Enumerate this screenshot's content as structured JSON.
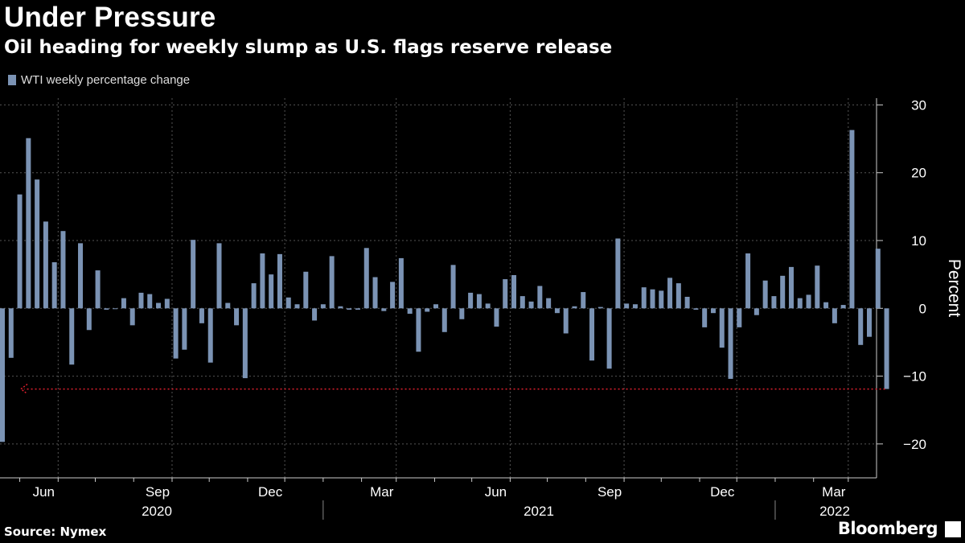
{
  "chart_data": {
    "type": "bar",
    "title": "Under Pressure",
    "subtitle": "Oil heading for weekly slump as U.S. flags reserve release",
    "ylabel": "Percent",
    "ylim": [
      -25,
      31
    ],
    "yticks": [
      30,
      20,
      10,
      0,
      -10,
      -20
    ],
    "grid": true,
    "legend_placement": "top-left",
    "source": "Source: Nymex",
    "brand": "Bloomberg",
    "colors": {
      "bar": "#7b93b4",
      "annotation": "#e0202e",
      "grid": "#555555",
      "background": "#000000"
    },
    "x_months": [
      "Jun",
      "Sep",
      "Dec",
      "Mar",
      "Jun",
      "Sep",
      "Dec",
      "Mar"
    ],
    "x_years": [
      "2020",
      "2021",
      "2022"
    ],
    "series": [
      {
        "name": "WTI weekly percentage change",
        "x": [
          "2020-04-17",
          "2020-04-24",
          "2020-05-01",
          "2020-05-08",
          "2020-05-15",
          "2020-05-22",
          "2020-05-29",
          "2020-06-05",
          "2020-06-12",
          "2020-06-19",
          "2020-06-26",
          "2020-07-03",
          "2020-07-10",
          "2020-07-17",
          "2020-07-24",
          "2020-07-31",
          "2020-08-07",
          "2020-08-14",
          "2020-08-21",
          "2020-08-28",
          "2020-09-04",
          "2020-09-11",
          "2020-09-18",
          "2020-09-25",
          "2020-10-02",
          "2020-10-09",
          "2020-10-16",
          "2020-10-23",
          "2020-10-30",
          "2020-11-06",
          "2020-11-13",
          "2020-11-20",
          "2020-11-27",
          "2020-12-04",
          "2020-12-11",
          "2020-12-18",
          "2020-12-25",
          "2021-01-01",
          "2021-01-08",
          "2021-01-15",
          "2021-01-22",
          "2021-01-29",
          "2021-02-05",
          "2021-02-12",
          "2021-02-19",
          "2021-02-26",
          "2021-03-05",
          "2021-03-12",
          "2021-03-19",
          "2021-03-26",
          "2021-04-02",
          "2021-04-09",
          "2021-04-16",
          "2021-04-23",
          "2021-04-30",
          "2021-05-07",
          "2021-05-14",
          "2021-05-21",
          "2021-05-28",
          "2021-06-04",
          "2021-06-11",
          "2021-06-18",
          "2021-06-25",
          "2021-07-02",
          "2021-07-09",
          "2021-07-16",
          "2021-07-23",
          "2021-07-30",
          "2021-08-06",
          "2021-08-13",
          "2021-08-20",
          "2021-08-27",
          "2021-09-03",
          "2021-09-10",
          "2021-09-17",
          "2021-09-24",
          "2021-10-01",
          "2021-10-08",
          "2021-10-15",
          "2021-10-22",
          "2021-10-29",
          "2021-11-05",
          "2021-11-12",
          "2021-11-19",
          "2021-11-26",
          "2021-12-03",
          "2021-12-10",
          "2021-12-17",
          "2021-12-24",
          "2021-12-31",
          "2022-01-07",
          "2022-01-14",
          "2022-01-21",
          "2022-01-28",
          "2022-02-04",
          "2022-02-11",
          "2022-02-18",
          "2022-02-25",
          "2022-03-04",
          "2022-03-11",
          "2022-03-18",
          "2022-03-25",
          "2022-04-01"
        ],
        "values": [
          -19.7,
          -7.3,
          16.8,
          25.1,
          19.0,
          12.8,
          6.8,
          11.4,
          -8.3,
          9.6,
          -3.2,
          5.6,
          -0.2,
          -0.1,
          1.5,
          -2.5,
          2.3,
          2.1,
          0.8,
          1.4,
          -7.4,
          -6.1,
          10.1,
          -2.2,
          -8.0,
          9.6,
          0.8,
          -2.5,
          -10.3,
          3.7,
          8.1,
          5.0,
          8.0,
          1.6,
          0.6,
          5.4,
          -1.8,
          0.6,
          7.7,
          0.3,
          -0.2,
          -0.2,
          8.9,
          4.6,
          -0.4,
          3.9,
          7.4,
          -0.8,
          -6.4,
          -0.5,
          0.6,
          -3.5,
          6.4,
          -1.6,
          2.3,
          2.1,
          0.7,
          -2.7,
          4.3,
          4.9,
          1.8,
          1.0,
          3.3,
          1.5,
          -0.7,
          -3.7,
          0.3,
          2.4,
          -7.7,
          0.2,
          -8.9,
          10.3,
          0.7,
          0.6,
          3.1,
          2.8,
          2.6,
          4.5,
          3.7,
          1.7,
          -0.2,
          -2.8,
          -0.7,
          -5.8,
          -10.4,
          -2.8,
          8.1,
          -1.0,
          4.1,
          1.8,
          4.8,
          6.1,
          1.5,
          2.0,
          6.3,
          0.9,
          -2.2,
          0.5,
          26.3,
          -5.4,
          -4.2,
          8.8,
          -11.9
        ]
      }
    ],
    "annotation": {
      "type": "dotted-arrow",
      "from_value": -11.9,
      "label": ""
    }
  }
}
